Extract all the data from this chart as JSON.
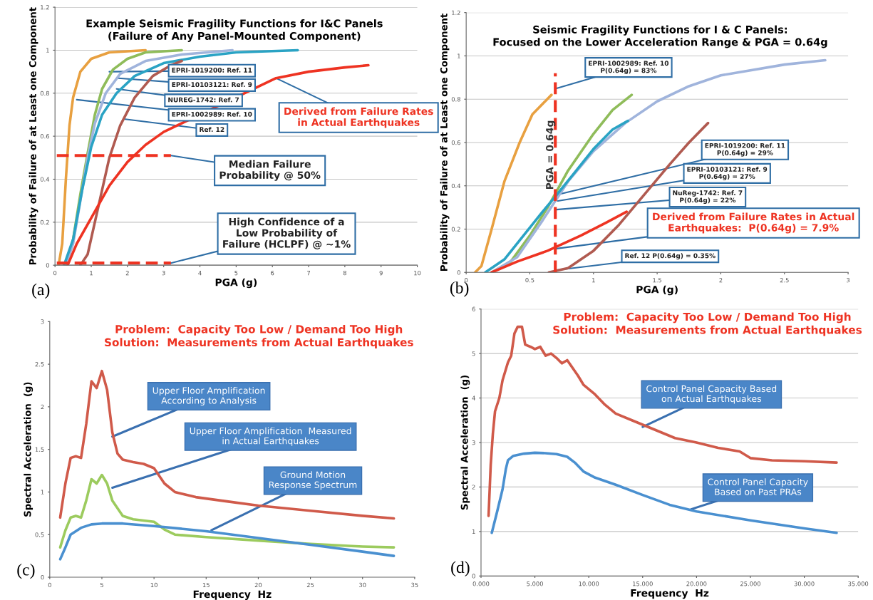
{
  "chart_data": [
    {
      "type": "line",
      "title": "Example Seismic Fragility Functions for I&C Panels\n(Failure of Any Panel-Mounted Component)",
      "xlabel": "PGA (g)",
      "ylabel": "Probability of Failure of at Least one Component",
      "xlim": [
        0,
        10
      ],
      "ylim": [
        0,
        1.2
      ],
      "xticks": [
        0,
        1,
        2,
        3,
        4,
        5,
        6,
        7,
        8,
        9,
        10
      ],
      "yticks": [
        0,
        0.2,
        0.4,
        0.6,
        0.8,
        1,
        1.2
      ],
      "grid": "y",
      "series": [
        {
          "color": "#e8a040",
          "x": [
            0.1,
            0.2,
            0.3,
            0.4,
            0.5,
            0.7,
            1.0,
            1.5,
            2.5
          ],
          "values": [
            0,
            0.1,
            0.4,
            0.65,
            0.78,
            0.9,
            0.96,
            0.99,
            1.0
          ]
        },
        {
          "color": "#8fbc5a",
          "x": [
            0.3,
            0.5,
            0.7,
            0.9,
            1.1,
            1.3,
            1.6,
            2,
            2.5,
            3.5
          ],
          "values": [
            0,
            0.12,
            0.33,
            0.52,
            0.7,
            0.82,
            0.91,
            0.96,
            0.99,
            1.0
          ]
        },
        {
          "color": "#a0b4dc",
          "x": [
            0.3,
            0.5,
            0.7,
            0.9,
            1.1,
            1.4,
            1.8,
            2.5,
            3.5,
            4.9
          ],
          "values": [
            0,
            0.1,
            0.3,
            0.5,
            0.66,
            0.8,
            0.89,
            0.95,
            0.98,
            1.0
          ]
        },
        {
          "color": "#2aa3c4",
          "x": [
            0.25,
            0.5,
            0.75,
            1.0,
            1.3,
            1.7,
            2.2,
            3,
            4,
            5,
            6.7
          ],
          "values": [
            0,
            0.12,
            0.35,
            0.55,
            0.7,
            0.8,
            0.88,
            0.94,
            0.97,
            0.99,
            1.0
          ]
        },
        {
          "color": "#b05a50",
          "x": [
            0.7,
            0.9,
            1.1,
            1.3,
            1.5,
            1.8,
            2.2,
            2.7,
            3.2,
            3.5
          ],
          "values": [
            0,
            0.05,
            0.2,
            0.35,
            0.5,
            0.65,
            0.78,
            0.88,
            0.93,
            0.95
          ]
        },
        {
          "color": "#ee3322",
          "x": [
            0.35,
            0.6,
            1,
            1.5,
            2,
            2.5,
            3,
            6.1,
            7,
            8,
            8.65
          ],
          "values": [
            0,
            0.1,
            0.22,
            0.37,
            0.48,
            0.56,
            0.62,
            0.87,
            0.9,
            0.92,
            0.93
          ]
        },
        {
          "color": "#ee3322",
          "line_style": "dashed",
          "x": [
            0.05,
            3.2
          ],
          "values": [
            0.51,
            0.51
          ]
        },
        {
          "color": "#ee3322",
          "line_style": "dashed",
          "x": [
            0.05,
            3.2
          ],
          "values": [
            0.01,
            0.01
          ]
        }
      ],
      "annotations": [
        {
          "text": "EPRI-1019200: Ref. 11",
          "x": 1.5,
          "y": 0.9
        },
        {
          "text": "EPRI-10103121: Ref. 9",
          "x": 1.75,
          "y": 0.87
        },
        {
          "text": "NUREG-1742: Ref. 7",
          "x": 1.7,
          "y": 0.82
        },
        {
          "text": "EPRI-1002989: Ref. 10",
          "x": 0.6,
          "y": 0.77
        },
        {
          "text": "Ref. 12",
          "x": 1.9,
          "y": 0.68
        },
        {
          "text": "Derived from Failure Rates\nin Actual Earthquakes",
          "x": 6.1,
          "y": 0.87
        },
        {
          "text": "Median Failure\nProbability @ 50%",
          "x": 3.2,
          "y": 0.51
        },
        {
          "text": "High Confidence of a\nLow Probability of\nFailure (HCLPF) @ ~1%",
          "x": 3.2,
          "y": 0.01
        },
        "(a)"
      ]
    },
    {
      "type": "line",
      "title": "Seismic Fragility Functions for I & C Panels:\nFocused on the Lower Acceleration Range & PGA = 0.64g",
      "xlabel": "PGA (g)",
      "ylabel": "Probability of Failure of at Least one Component",
      "xlim": [
        0,
        3
      ],
      "ylim": [
        0,
        1.2
      ],
      "xticks": [
        0,
        0.5,
        1,
        1.5,
        2,
        2.5,
        3
      ],
      "yticks": [
        0,
        0.2,
        0.4,
        0.6,
        0.8,
        1,
        1.2
      ],
      "grid": "y",
      "series": [
        {
          "color": "#e8a040",
          "x": [
            0.07,
            0.12,
            0.2,
            0.3,
            0.42,
            0.52,
            0.67
          ],
          "values": [
            0,
            0.03,
            0.2,
            0.42,
            0.6,
            0.73,
            0.82
          ]
        },
        {
          "color": "#8fbc5a",
          "x": [
            0.2,
            0.35,
            0.5,
            0.64,
            0.8,
            1.0,
            1.15,
            1.3
          ],
          "values": [
            0,
            0.05,
            0.17,
            0.3,
            0.47,
            0.64,
            0.75,
            0.82
          ]
        },
        {
          "color": "#a0b4dc",
          "x": [
            0.2,
            0.4,
            0.6,
            0.8,
            1.0,
            1.25,
            1.5,
            1.75,
            2.0,
            2.5,
            2.82
          ],
          "values": [
            0,
            0.07,
            0.24,
            0.42,
            0.56,
            0.69,
            0.79,
            0.86,
            0.91,
            0.96,
            0.98
          ]
        },
        {
          "color": "#2aa3c4",
          "x": [
            0.15,
            0.3,
            0.45,
            0.6,
            0.7,
            0.85,
            1.0,
            1.15,
            1.27
          ],
          "values": [
            0,
            0.06,
            0.17,
            0.28,
            0.35,
            0.46,
            0.57,
            0.66,
            0.7
          ]
        },
        {
          "color": "#b05a50",
          "x": [
            0.65,
            0.8,
            1.0,
            1.2,
            1.4,
            1.6,
            1.75,
            1.9
          ],
          "values": [
            0,
            0.02,
            0.1,
            0.22,
            0.36,
            0.5,
            0.6,
            0.69
          ]
        },
        {
          "color": "#ee3322",
          "x": [
            0.2,
            0.4,
            0.64,
            0.9,
            1.1,
            1.26
          ],
          "values": [
            0,
            0.05,
            0.1,
            0.17,
            0.23,
            0.28
          ]
        },
        {
          "color": "#ee3322",
          "line_style": "dashed",
          "x": [
            0.7,
            0.7
          ],
          "values": [
            0,
            0.92
          ]
        }
      ],
      "annotations": [
        {
          "text": "EPRI-1002989: Ref. 10\nP(0.64g) = 83%",
          "x": 0.71,
          "y": 0.85
        },
        {
          "text": "EPRI-1019200: Ref. 11\nP(0.64g) = 29%",
          "x": 0.72,
          "y": 0.36
        },
        {
          "text": "EPRI-10103121: Ref. 9\nP(0.64g) = 27%",
          "x": 0.72,
          "y": 0.33
        },
        {
          "text": "NuReg-1742: Ref. 7\nP(0.64g) = 22%",
          "x": 0.71,
          "y": 0.29
        },
        {
          "text": "Derived from Failure Rates in Actual\nEarthquakes:  P(0.64g) = 7.9%",
          "x": 0.71,
          "y": 0.11
        },
        {
          "text": "Ref. 12 P(0.64g) = 0.35%",
          "x": 0.7,
          "y": 0.01
        },
        "PGA = 0.64g",
        "(b)"
      ]
    },
    {
      "type": "line",
      "title": "Problem:  Capacity Too Low / Demand Too High\nSolution:  Measurements from Actual Earthquakes",
      "xlabel": "Frequency  Hz",
      "ylabel": "Spectral Acceleration  (g)",
      "xlim": [
        0,
        35
      ],
      "ylim": [
        0,
        3
      ],
      "xticks": [
        0,
        5,
        10,
        15,
        20,
        25,
        30,
        35
      ],
      "yticks": [
        0,
        0.5,
        1,
        1.5,
        2,
        2.5,
        3
      ],
      "series": [
        {
          "color": "#d05a4a",
          "x": [
            1,
            1.5,
            2,
            2.5,
            3,
            3.5,
            4,
            4.5,
            5,
            5.5,
            6,
            6.5,
            7,
            8,
            9,
            10,
            11,
            12,
            14,
            17,
            20,
            25,
            30,
            33
          ],
          "values": [
            0.7,
            1.1,
            1.4,
            1.42,
            1.4,
            1.8,
            2.3,
            2.22,
            2.42,
            2.2,
            1.7,
            1.45,
            1.38,
            1.35,
            1.33,
            1.28,
            1.1,
            1.0,
            0.94,
            0.89,
            0.84,
            0.78,
            0.72,
            0.69
          ]
        },
        {
          "color": "#9ccb5e",
          "x": [
            1,
            1.5,
            2,
            2.5,
            3,
            3.5,
            4,
            4.5,
            5,
            5.5,
            6,
            7,
            8,
            10,
            11,
            12,
            15,
            20,
            25,
            30,
            33
          ],
          "values": [
            0.35,
            0.55,
            0.7,
            0.72,
            0.7,
            0.9,
            1.15,
            1.1,
            1.2,
            1.1,
            0.9,
            0.72,
            0.68,
            0.65,
            0.56,
            0.5,
            0.47,
            0.43,
            0.39,
            0.36,
            0.35
          ]
        },
        {
          "color": "#4a90d0",
          "x": [
            1,
            1.5,
            2,
            3,
            4,
            5,
            7,
            10,
            15,
            20,
            25,
            30,
            33
          ],
          "values": [
            0.21,
            0.35,
            0.5,
            0.58,
            0.62,
            0.63,
            0.63,
            0.6,
            0.54,
            0.46,
            0.38,
            0.3,
            0.25
          ]
        }
      ],
      "annotations": [
        {
          "text": "Upper Floor Amplification\nAccording to Analysis",
          "x": 6,
          "y": 1.65
        },
        {
          "text": "Upper Floor Amplification  Measured\nin Actual Earthquakes",
          "x": 6,
          "y": 1.05
        },
        {
          "text": "Ground Motion\nResponse Spectrum",
          "x": 15.5,
          "y": 0.55
        },
        "(c)"
      ]
    },
    {
      "type": "line",
      "title": "Problem:  Capacity Too Low / Demand Too High\nSolution:  Measurements from Actual Earthquakes",
      "xlabel": "Frequency  Hz",
      "ylabel": "Spectral Acceleration  (g)",
      "xlim": [
        0,
        35
      ],
      "ylim": [
        0,
        6
      ],
      "xticks": [
        {
          "value": 0,
          "label": "0.000"
        },
        {
          "value": 5,
          "label": "5.000"
        },
        {
          "value": 10,
          "label": "10.000"
        },
        {
          "value": 15,
          "label": "15.000"
        },
        {
          "value": 20,
          "label": "20.000"
        },
        {
          "value": 25,
          "label": "25.000"
        },
        {
          "value": 30,
          "label": "30.000"
        },
        {
          "value": 35,
          "label": "35.000"
        }
      ],
      "yticks": [
        0,
        1,
        2,
        3,
        4,
        5,
        6
      ],
      "grid": "y",
      "series": [
        {
          "color": "#d05a4a",
          "x": [
            0.7,
            0.9,
            1.1,
            1.3,
            1.7,
            2,
            2.5,
            2.8,
            3.1,
            3.4,
            3.6,
            3.8,
            4.1,
            4.6,
            5,
            5.5,
            6,
            6.5,
            7,
            7.5,
            8,
            9,
            9.5,
            10.5,
            11.5,
            12.5,
            14,
            16,
            18,
            20,
            22,
            24,
            25,
            27,
            30,
            33
          ],
          "values": [
            1.35,
            2.5,
            3.2,
            3.7,
            4.0,
            4.4,
            4.8,
            4.95,
            5.45,
            5.6,
            5.6,
            5.6,
            5.2,
            5.15,
            5.1,
            5.15,
            4.95,
            5.0,
            4.9,
            4.78,
            4.85,
            4.5,
            4.3,
            4.1,
            3.85,
            3.65,
            3.5,
            3.3,
            3.1,
            3.0,
            2.88,
            2.8,
            2.65,
            2.6,
            2.58,
            2.55
          ]
        },
        {
          "color": "#4a90d0",
          "x": [
            1,
            1.5,
            2,
            2.3,
            2.5,
            3,
            4,
            5,
            6,
            7,
            8,
            8.7,
            9.5,
            10.5,
            12.5,
            15,
            17.5,
            20,
            25,
            30,
            33
          ],
          "values": [
            0.97,
            1.45,
            1.95,
            2.4,
            2.6,
            2.7,
            2.75,
            2.77,
            2.76,
            2.74,
            2.68,
            2.55,
            2.35,
            2.22,
            2.05,
            1.82,
            1.6,
            1.45,
            1.25,
            1.07,
            0.97
          ]
        }
      ],
      "annotations": [
        {
          "text": "Control Panel Capacity Based\non Actual Earthquakes",
          "x": 15,
          "y": 3.35
        },
        {
          "text": "Control Panel Capacity\nBased on Past PRAs",
          "x": 19.5,
          "y": 1.5
        },
        "(d)"
      ]
    }
  ]
}
